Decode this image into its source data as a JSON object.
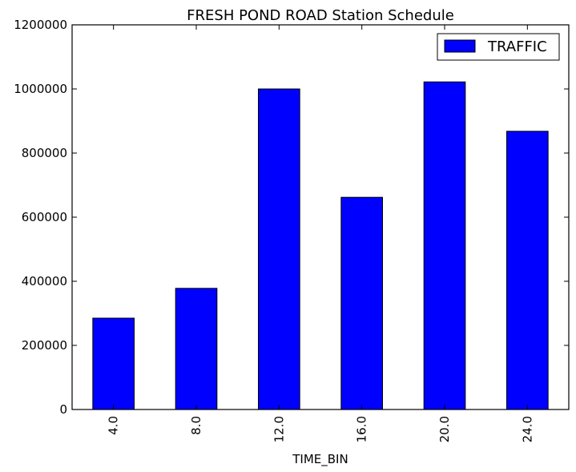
{
  "chart_data": {
    "type": "bar",
    "title": "FRESH POND ROAD Station Schedule",
    "xlabel": "TIME_BIN",
    "ylabel": "",
    "categories": [
      "4.0",
      "8.0",
      "12.0",
      "16.0",
      "20.0",
      "24.0"
    ],
    "series": [
      {
        "name": "TRAFFIC",
        "color": "#0000ff",
        "values": [
          285000,
          378000,
          1000000,
          662000,
          1022000,
          868000
        ]
      }
    ],
    "ylim": [
      0,
      1200000
    ],
    "yticks": [
      0,
      200000,
      400000,
      600000,
      800000,
      1000000,
      1200000
    ],
    "ytick_labels": [
      "0",
      "200000",
      "400000",
      "600000",
      "800000",
      "1000000",
      "1200000"
    ],
    "grid": false,
    "legend_position": "top-right"
  }
}
